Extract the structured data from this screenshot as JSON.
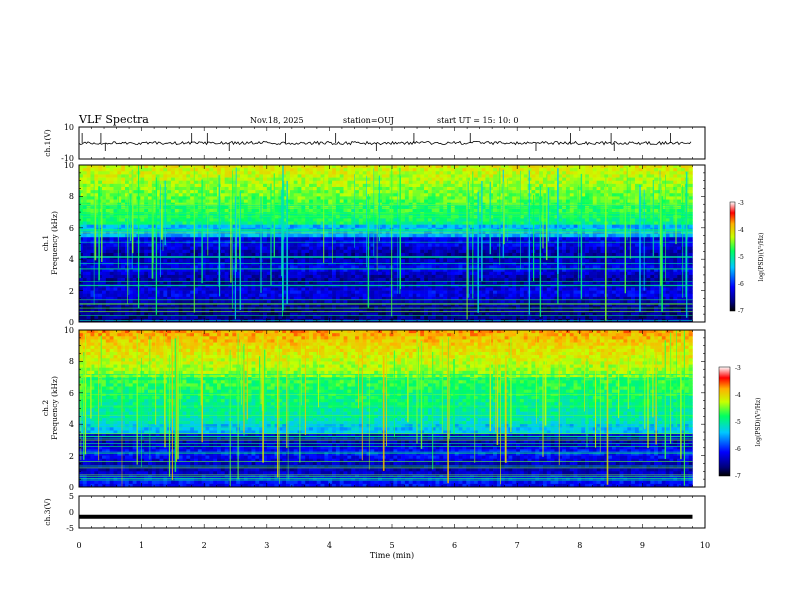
{
  "header": {
    "title": "VLF Spectra",
    "date": "Nov.18, 2025",
    "station": "station=OUJ",
    "start": "start  UT =   15: 10: 0"
  },
  "chart_data": [
    {
      "type": "line",
      "panel": "ch1-waveform",
      "ylabel": "ch.1(V)",
      "ylim": [
        -10,
        10
      ],
      "yticks": [
        "10",
        "-10"
      ],
      "baseline": 0,
      "spikes_min": [
        0.05,
        0.35,
        0.42,
        1.8,
        2.05,
        2.4,
        3.3,
        4.1,
        4.75,
        5.35,
        6.25,
        7.3,
        7.85,
        8.5,
        8.55,
        9.45
      ]
    },
    {
      "type": "heatmap",
      "panel": "ch1-spectrogram",
      "ylabel_line1": "ch.1",
      "ylabel_line2": "Frequency (kHz)",
      "ylim": [
        0,
        10
      ],
      "yticks": [
        "0",
        "2",
        "4",
        "6",
        "8",
        "10"
      ],
      "colorbar": {
        "label": "log(PSD)(V²/Hz)",
        "range": [
          -7,
          -3
        ],
        "ticks": [
          "-3",
          "-4",
          "-5",
          "-6",
          "-7"
        ]
      }
    },
    {
      "type": "heatmap",
      "panel": "ch2-spectrogram",
      "ylabel_line1": "ch.2",
      "ylabel_line2": "Frequency (kHz)",
      "ylim": [
        0,
        10
      ],
      "yticks": [
        "0",
        "2",
        "4",
        "6",
        "8",
        "10"
      ],
      "colorbar": {
        "label": "log(PSD)(V²/Hz)",
        "range": [
          -7,
          -3
        ],
        "ticks": [
          "-3",
          "-4",
          "-5",
          "-6",
          "-7"
        ]
      }
    },
    {
      "type": "line",
      "panel": "ch3-waveform",
      "ylabel": "ch.3(V)",
      "ylim": [
        -5,
        5
      ],
      "yticks": [
        "5",
        "0",
        "-5"
      ],
      "level": -1.5
    }
  ],
  "x_axis": {
    "xlabel": "Time  (min)",
    "xlim": [
      0,
      10
    ],
    "data_end_min": 9.8,
    "ticks": [
      "0",
      "1",
      "2",
      "3",
      "4",
      "5",
      "6",
      "7",
      "8",
      "9",
      "10"
    ]
  }
}
